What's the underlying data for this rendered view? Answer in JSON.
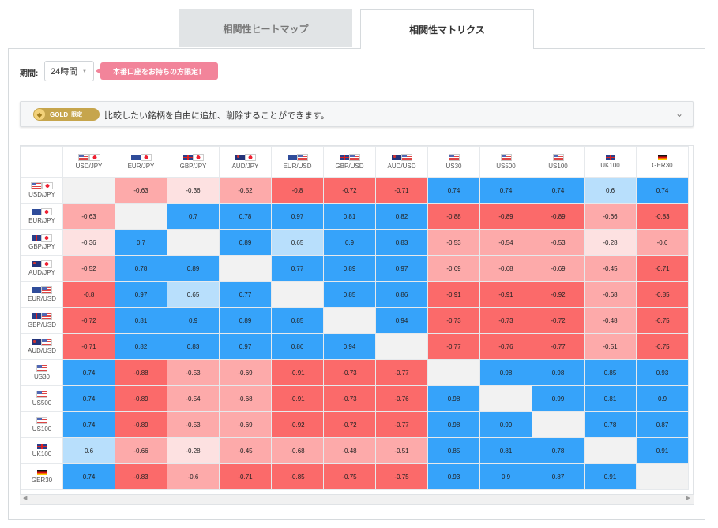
{
  "tabs": [
    {
      "label": "相関性ヒートマップ",
      "active": false
    },
    {
      "label": "相関性マトリクス",
      "active": true
    }
  ],
  "period": {
    "label": "期間:",
    "value": "24時間"
  },
  "promo_badge": "本番口座をお持ちの方限定！",
  "gold_bar": {
    "pill_label": "GOLD",
    "pill_suffix": "限定",
    "text": "比較したい銘柄を自由に追加、削除することができます。"
  },
  "colors": {
    "positive_strong": "#36a3fa",
    "positive_light": "#b8dffc",
    "negative_strong": "#fb6a6a",
    "negative_mid": "#fdaaaa",
    "negative_light": "#fde1e1",
    "diagonal": "#f2f2f2",
    "accent_badge": "#f2849a",
    "gold": "#c6a54c"
  },
  "columns": [
    "USD/JPY",
    "EUR/JPY",
    "GBP/JPY",
    "AUD/JPY",
    "EUR/USD",
    "GBP/USD",
    "AUD/USD",
    "US30",
    "US500",
    "US100",
    "UK100",
    "GER30"
  ],
  "rows": [
    "USD/JPY",
    "EUR/JPY",
    "GBP/JPY",
    "AUD/JPY",
    "EUR/USD",
    "GBP/USD",
    "AUD/USD",
    "US30",
    "US500",
    "US100",
    "UK100",
    "GER30"
  ],
  "flags": {
    "USD/JPY": [
      "us",
      "jp"
    ],
    "EUR/JPY": [
      "eu",
      "jp"
    ],
    "GBP/JPY": [
      "gb",
      "jp"
    ],
    "AUD/JPY": [
      "au",
      "jp"
    ],
    "EUR/USD": [
      "eu",
      "us"
    ],
    "GBP/USD": [
      "gb",
      "us"
    ],
    "AUD/USD": [
      "au",
      "us"
    ],
    "US30": [
      "us"
    ],
    "US500": [
      "us"
    ],
    "US100": [
      "us"
    ],
    "UK100": [
      "gb"
    ],
    "GER30": [
      "de"
    ]
  },
  "matrix": [
    [
      "",
      "-0.63",
      "-0.36",
      "-0.52",
      "-0.8",
      "-0.72",
      "-0.71",
      "0.74",
      "0.74",
      "0.74",
      "0.6",
      "0.74"
    ],
    [
      "-0.63",
      "",
      "0.7",
      "0.78",
      "0.97",
      "0.81",
      "0.82",
      "-0.88",
      "-0.89",
      "-0.89",
      "-0.66",
      "-0.83"
    ],
    [
      "-0.36",
      "0.7",
      "",
      "0.89",
      "0.65",
      "0.9",
      "0.83",
      "-0.53",
      "-0.54",
      "-0.53",
      "-0.28",
      "-0.6"
    ],
    [
      "-0.52",
      "0.78",
      "0.89",
      "",
      "0.77",
      "0.89",
      "0.97",
      "-0.69",
      "-0.68",
      "-0.69",
      "-0.45",
      "-0.71"
    ],
    [
      "-0.8",
      "0.97",
      "0.65",
      "0.77",
      "",
      "0.85",
      "0.86",
      "-0.91",
      "-0.91",
      "-0.92",
      "-0.68",
      "-0.85"
    ],
    [
      "-0.72",
      "0.81",
      "0.9",
      "0.89",
      "0.85",
      "",
      "0.94",
      "-0.73",
      "-0.73",
      "-0.72",
      "-0.48",
      "-0.75"
    ],
    [
      "-0.71",
      "0.82",
      "0.83",
      "0.97",
      "0.86",
      "0.94",
      "",
      "-0.77",
      "-0.76",
      "-0.77",
      "-0.51",
      "-0.75"
    ],
    [
      "0.74",
      "-0.88",
      "-0.53",
      "-0.69",
      "-0.91",
      "-0.73",
      "-0.77",
      "",
      "0.98",
      "0.98",
      "0.85",
      "0.93"
    ],
    [
      "0.74",
      "-0.89",
      "-0.54",
      "-0.68",
      "-0.91",
      "-0.73",
      "-0.76",
      "0.98",
      "",
      "0.99",
      "0.81",
      "0.9"
    ],
    [
      "0.74",
      "-0.89",
      "-0.53",
      "-0.69",
      "-0.92",
      "-0.72",
      "-0.77",
      "0.98",
      "0.99",
      "",
      "0.78",
      "0.87"
    ],
    [
      "0.6",
      "-0.66",
      "-0.28",
      "-0.45",
      "-0.68",
      "-0.48",
      "-0.51",
      "0.85",
      "0.81",
      "0.78",
      "",
      "0.91"
    ],
    [
      "0.74",
      "-0.83",
      "-0.6",
      "-0.71",
      "-0.85",
      "-0.75",
      "-0.75",
      "0.93",
      "0.9",
      "0.87",
      "0.91",
      ""
    ]
  ]
}
